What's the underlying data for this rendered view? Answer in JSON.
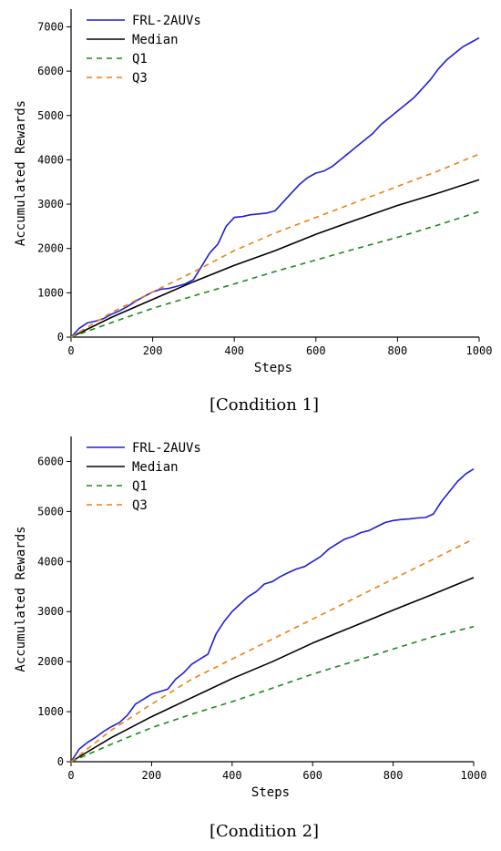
{
  "chart_data": [
    {
      "type": "line",
      "caption": "[Condition 1]",
      "xlabel": "Steps",
      "ylabel": "Accumulated Rewards",
      "xlim": [
        0,
        1000
      ],
      "ylim": [
        0,
        7400
      ],
      "xticks": [
        0,
        200,
        400,
        600,
        800,
        1000
      ],
      "yticks": [
        0,
        1000,
        2000,
        3000,
        4000,
        5000,
        6000,
        7000
      ],
      "legend_position": "top-left",
      "series": [
        {
          "name": "FRL-2AUVs",
          "color": "#1f1fd6",
          "style": "solid",
          "x": [
            0,
            20,
            40,
            60,
            80,
            100,
            120,
            140,
            160,
            180,
            200,
            220,
            240,
            260,
            280,
            300,
            320,
            340,
            360,
            380,
            400,
            420,
            440,
            460,
            480,
            500,
            520,
            540,
            560,
            580,
            600,
            620,
            640,
            660,
            680,
            700,
            720,
            740,
            760,
            780,
            800,
            820,
            840,
            860,
            880,
            900,
            920,
            940,
            960,
            980,
            1000
          ],
          "y": [
            0,
            200,
            320,
            360,
            420,
            520,
            600,
            700,
            820,
            920,
            1020,
            1080,
            1100,
            1150,
            1200,
            1300,
            1600,
            1900,
            2100,
            2500,
            2700,
            2720,
            2760,
            2780,
            2800,
            2850,
            3050,
            3250,
            3450,
            3600,
            3700,
            3750,
            3850,
            4000,
            4150,
            4300,
            4450,
            4600,
            4800,
            4950,
            5100,
            5250,
            5400,
            5600,
            5800,
            6050,
            6250,
            6400,
            6550,
            6650,
            6750
          ]
        },
        {
          "name": "Median",
          "color": "#000000",
          "style": "solid",
          "x": [
            0,
            100,
            200,
            300,
            400,
            500,
            600,
            700,
            800,
            900,
            1000
          ],
          "y": [
            0,
            450,
            850,
            1250,
            1620,
            1950,
            2320,
            2650,
            2970,
            3250,
            3550
          ]
        },
        {
          "name": "Q1",
          "color": "#1a8a1a",
          "style": "dashed",
          "x": [
            0,
            100,
            200,
            300,
            400,
            500,
            600,
            700,
            800,
            900,
            1000
          ],
          "y": [
            0,
            330,
            650,
            930,
            1200,
            1480,
            1740,
            2000,
            2250,
            2530,
            2830
          ]
        },
        {
          "name": "Q3",
          "color": "#f07f10",
          "style": "dashed",
          "x": [
            0,
            100,
            200,
            300,
            400,
            500,
            600,
            700,
            800,
            900,
            1000
          ],
          "y": [
            0,
            560,
            1020,
            1470,
            1950,
            2350,
            2700,
            3050,
            3400,
            3750,
            4130
          ]
        }
      ]
    },
    {
      "type": "line",
      "caption": "[Condition 2]",
      "xlabel": "Steps",
      "ylabel": "Accumulated Rewards",
      "xlim": [
        0,
        1000
      ],
      "ylim": [
        0,
        6500
      ],
      "xticks": [
        0,
        200,
        400,
        600,
        800,
        1000
      ],
      "yticks": [
        0,
        1000,
        2000,
        3000,
        4000,
        5000,
        6000
      ],
      "legend_position": "top-left",
      "series": [
        {
          "name": "FRL-2AUVs",
          "color": "#1f1fd6",
          "style": "solid",
          "x": [
            0,
            20,
            40,
            60,
            80,
            100,
            120,
            140,
            160,
            180,
            200,
            220,
            240,
            260,
            280,
            300,
            320,
            340,
            360,
            380,
            400,
            420,
            440,
            460,
            480,
            500,
            520,
            540,
            560,
            580,
            600,
            620,
            640,
            660,
            680,
            700,
            720,
            740,
            760,
            780,
            800,
            820,
            840,
            860,
            880,
            900,
            920,
            940,
            960,
            980,
            1000
          ],
          "y": [
            0,
            250,
            380,
            480,
            600,
            700,
            780,
            930,
            1150,
            1250,
            1350,
            1400,
            1450,
            1650,
            1780,
            1950,
            2050,
            2150,
            2550,
            2800,
            3000,
            3150,
            3300,
            3400,
            3550,
            3600,
            3700,
            3780,
            3850,
            3900,
            4000,
            4100,
            4250,
            4350,
            4450,
            4500,
            4580,
            4620,
            4700,
            4780,
            4820,
            4840,
            4850,
            4870,
            4880,
            4950,
            5200,
            5400,
            5600,
            5750,
            5850
          ]
        },
        {
          "name": "Median",
          "color": "#000000",
          "style": "solid",
          "x": [
            0,
            100,
            200,
            300,
            400,
            500,
            600,
            700,
            800,
            900,
            1000
          ],
          "y": [
            0,
            480,
            900,
            1280,
            1660,
            2000,
            2370,
            2700,
            3030,
            3350,
            3680
          ]
        },
        {
          "name": "Q1",
          "color": "#1a8a1a",
          "style": "dashed",
          "x": [
            0,
            100,
            200,
            300,
            400,
            500,
            600,
            700,
            800,
            900,
            1000
          ],
          "y": [
            0,
            350,
            680,
            950,
            1200,
            1470,
            1750,
            2000,
            2250,
            2500,
            2700
          ]
        },
        {
          "name": "Q3",
          "color": "#f07f10",
          "style": "dashed",
          "x": [
            0,
            100,
            200,
            300,
            400,
            500,
            600,
            700,
            800,
            900,
            1000
          ],
          "y": [
            0,
            630,
            1150,
            1650,
            2050,
            2450,
            2850,
            3250,
            3650,
            4050,
            4450
          ]
        }
      ]
    }
  ]
}
